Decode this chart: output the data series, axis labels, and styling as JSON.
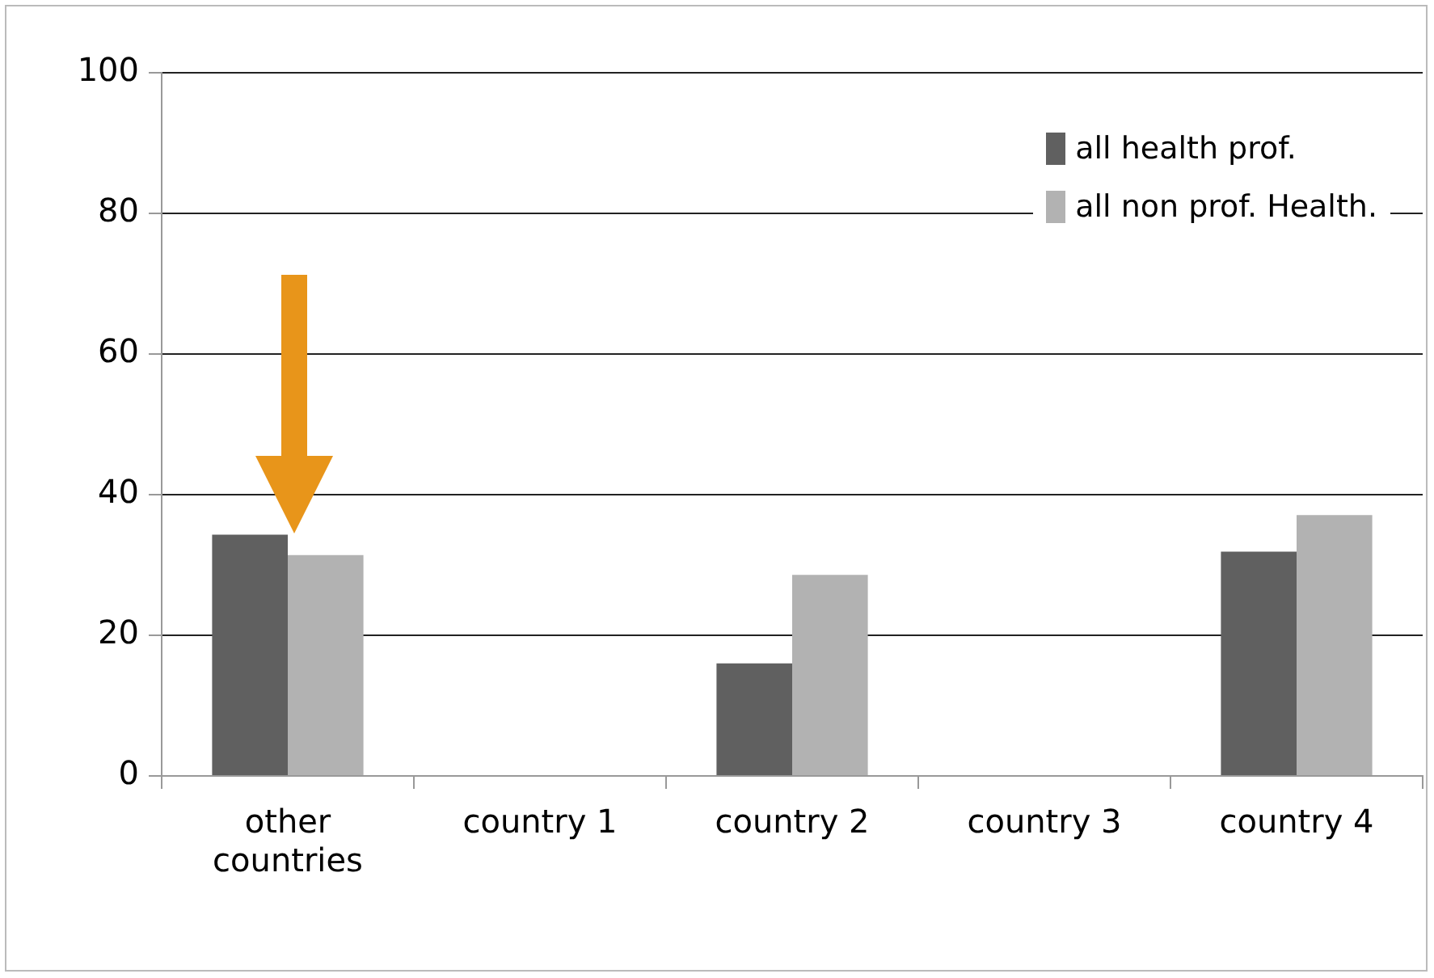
{
  "chart_data": {
    "type": "bar",
    "categories": [
      "other countries",
      "country 1",
      "country 2",
      "country 3",
      "country 4"
    ],
    "series": [
      {
        "name": "all health prof.",
        "color": "#606060",
        "values": [
          34.3,
          null,
          16,
          null,
          31.9
        ]
      },
      {
        "name": "all non prof. Health.",
        "color": "#b2b2b2",
        "values": [
          31.4,
          null,
          28.6,
          null,
          37.1
        ]
      }
    ],
    "ylim": [
      0,
      100
    ],
    "yticks": [
      0,
      20,
      40,
      60,
      80,
      100
    ],
    "grid": "y",
    "legend": "top right"
  }
}
